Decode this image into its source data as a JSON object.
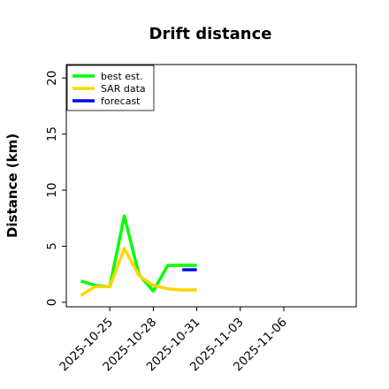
{
  "chart_data": {
    "type": "line",
    "title": "Drift distance",
    "xlabel": "",
    "ylabel": "Distance (km)",
    "ylim": [
      -0.4,
      21.2
    ],
    "xlim": [
      "2025-10-22",
      "2025-11-11"
    ],
    "yticks": [
      0,
      5,
      10,
      15,
      20
    ],
    "xticks": [
      "2025-10-25",
      "2025-10-28",
      "2025-10-31",
      "2025-11-03",
      "2025-11-06"
    ],
    "grid": false,
    "legend_position": "top-left",
    "series": [
      {
        "name": "best est.",
        "color": "#00ff00",
        "x": [
          "2025-10-23",
          "2025-10-24",
          "2025-10-25",
          "2025-10-26",
          "2025-10-27",
          "2025-10-28",
          "2025-10-29",
          "2025-10-30",
          "2025-10-31"
        ],
        "y": [
          1.9,
          1.5,
          1.4,
          7.7,
          2.5,
          1.0,
          3.3,
          3.3,
          3.3
        ]
      },
      {
        "name": "SAR data",
        "color": "#ffd700",
        "x": [
          "2025-10-23",
          "2025-10-24",
          "2025-10-25",
          "2025-10-26",
          "2025-10-27",
          "2025-10-28",
          "2025-10-29",
          "2025-10-30",
          "2025-10-31"
        ],
        "y": [
          0.6,
          1.4,
          1.4,
          4.8,
          2.4,
          1.5,
          1.2,
          1.1,
          1.1
        ]
      },
      {
        "name": "forecast",
        "color": "#0000ff",
        "x": [
          "2025-10-30",
          "2025-10-31"
        ],
        "y": [
          2.9,
          2.9
        ]
      }
    ]
  }
}
